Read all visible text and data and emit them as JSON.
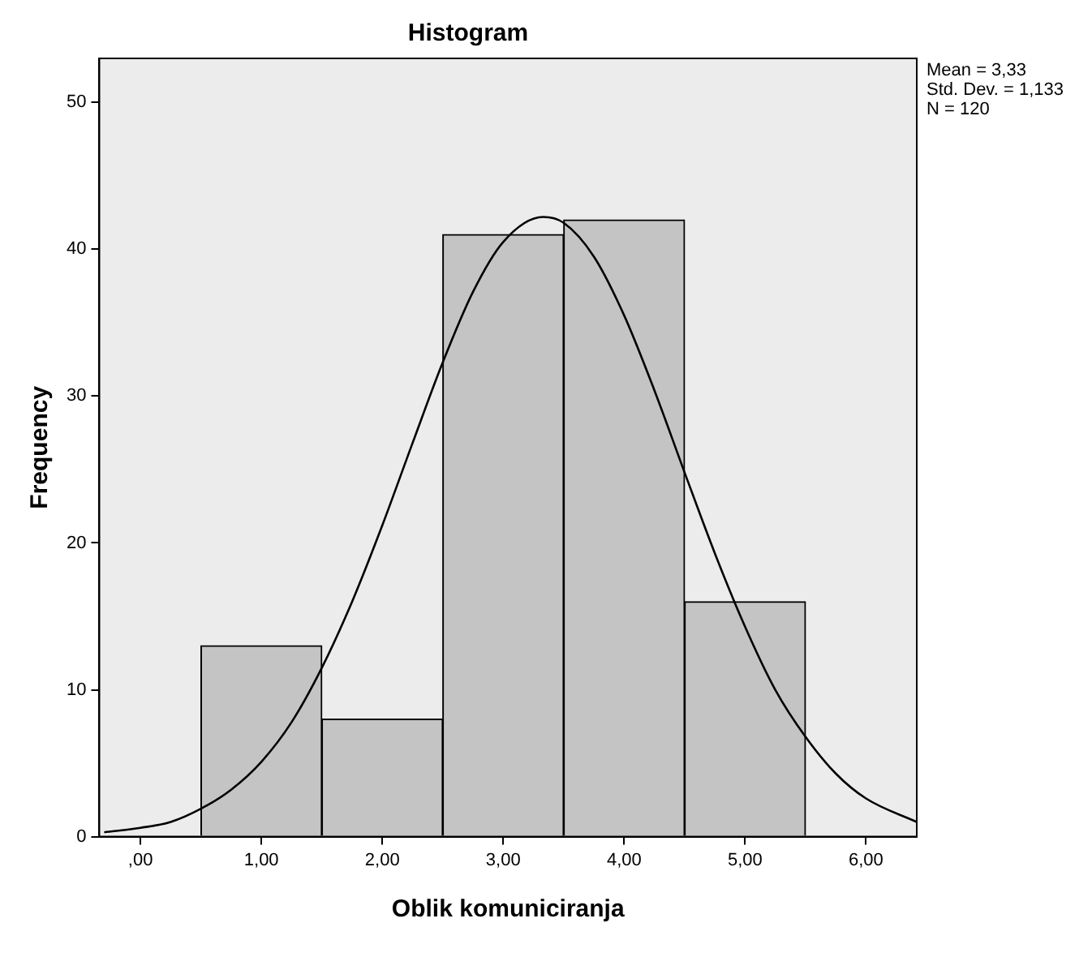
{
  "chart_data": {
    "type": "histogram",
    "title": "Histogram",
    "xlabel": "Oblik komuniciranja",
    "ylabel": "Frequency",
    "bins": [
      0.5,
      1.5,
      2.5,
      3.5,
      4.5,
      5.5
    ],
    "values": [
      13,
      8,
      41,
      42,
      16
    ],
    "color": "#c4c4c4",
    "series": [
      {
        "type": "line",
        "color": "#000000",
        "x": [
          -0.3,
          0,
          0.25,
          0.5,
          0.75,
          1,
          1.25,
          1.5,
          1.75,
          2,
          2.25,
          2.5,
          2.75,
          3,
          3.33,
          3.5,
          3.75,
          4,
          4.25,
          4.5,
          4.75,
          5,
          5.25,
          5.5,
          5.75,
          6,
          6.42
        ],
        "values": [
          0.3,
          0.6,
          1,
          1.9,
          3.2,
          5.1,
          7.8,
          11.5,
          16,
          21.2,
          26.8,
          32.3,
          37.1,
          40.5,
          42.2,
          41.8,
          39.5,
          35.5,
          30.4,
          24.8,
          19.3,
          14.3,
          10,
          6.8,
          4.3,
          2.6,
          1
        ]
      }
    ],
    "xlim": [
      -0.34,
      6.42
    ],
    "xticks": [
      {
        "value": 0,
        "label": ",00"
      },
      {
        "value": 1,
        "label": "1,00"
      },
      {
        "value": 2,
        "label": "2,00"
      },
      {
        "value": 3,
        "label": "3,00"
      },
      {
        "value": 4,
        "label": "4,00"
      },
      {
        "value": 5,
        "label": "5,00"
      },
      {
        "value": 6,
        "label": "6,00"
      }
    ],
    "ylim": [
      0,
      53
    ],
    "yticks": [
      0,
      10,
      20,
      30,
      40,
      50
    ],
    "annotations": [
      "Mean = 3,33",
      "Std. Dev. = 1,133",
      "N = 120"
    ],
    "legend": false,
    "grid": false,
    "marker": "none"
  }
}
